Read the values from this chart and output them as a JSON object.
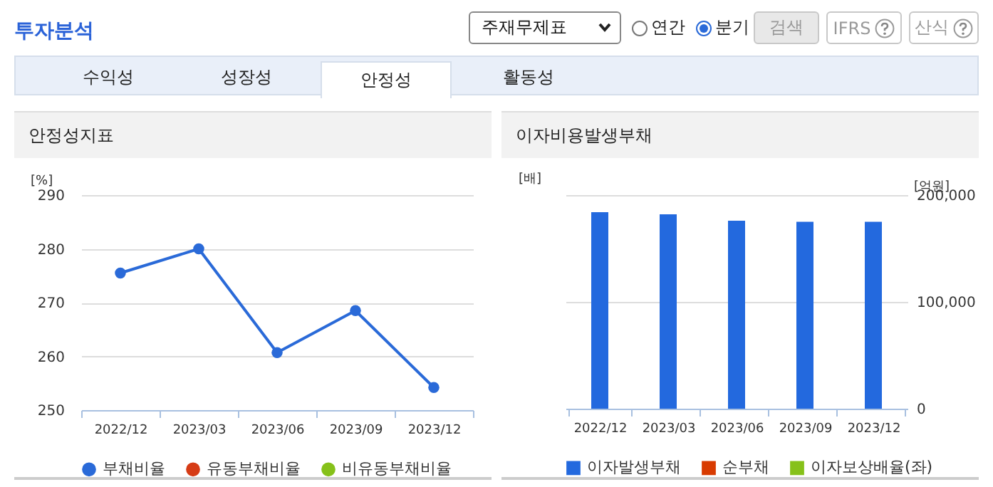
{
  "chart_data": [
    {
      "type": "other",
      "title": "투자분석",
      "annotations": [
        "주재무제표",
        "연간",
        "분기",
        "검색",
        "IFRS",
        "산식",
        "수익성",
        "성장성",
        "안정성",
        "활동성"
      ]
    },
    {
      "type": "line",
      "title": "안정성지표",
      "ylabel": "[%]",
      "categories": [
        "2022/12",
        "2023/03",
        "2023/06",
        "2023/09",
        "2023/12"
      ],
      "ylim": [
        250,
        290
      ],
      "yticks": [
        250,
        260,
        270,
        280,
        290
      ],
      "grid": "y",
      "legend": "bottom",
      "marker": "circle",
      "series": [
        {
          "name": "부채비율",
          "color": "#2a6ad8",
          "values": [
            275.5,
            280,
            260.7,
            268.5,
            254.2
          ]
        },
        {
          "name": "유동부채비율",
          "color": "#d63c16",
          "values": [
            null,
            null,
            null,
            null,
            null
          ]
        },
        {
          "name": "비유동부채비율",
          "color": "#86c11a",
          "values": [
            null,
            null,
            null,
            null,
            null
          ]
        }
      ]
    },
    {
      "type": "bar",
      "title": "이자비용발생부채",
      "ylabel": "[배]",
      "y2label": "[억원]",
      "categories": [
        "2022/12",
        "2023/03",
        "2023/06",
        "2023/09",
        "2023/12"
      ],
      "y2lim": [
        0,
        200000
      ],
      "y2ticks": [
        0,
        {
          "value": 100000,
          "label": "100,000"
        },
        {
          "value": 200000,
          "label": "200,000"
        }
      ],
      "grid": true,
      "legend": "bottom",
      "series": [
        {
          "name": "이자발생부채",
          "color": "#2369de",
          "axis": "y2",
          "values": [
            184000,
            182000,
            176000,
            175000,
            175000
          ]
        },
        {
          "name": "순부채",
          "color": "#d83b01",
          "axis": "y2",
          "values": [
            null,
            null,
            null,
            null,
            null
          ]
        },
        {
          "name": "이자보상배율(좌)",
          "type": "line",
          "color": "#86c11a",
          "axis": "y",
          "values": [
            null,
            null,
            null,
            null,
            null
          ]
        }
      ]
    }
  ]
}
